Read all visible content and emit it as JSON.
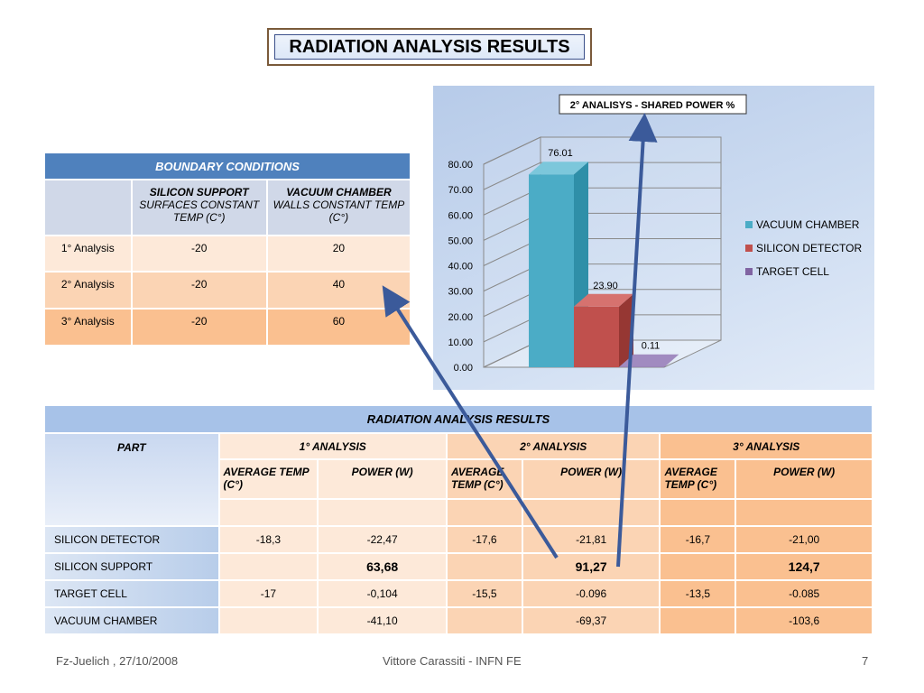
{
  "title": "RADIATION ANALYSIS RESULTS",
  "boundary": {
    "header": "BOUNDARY CONDITIONS",
    "col1_bold": "SILICON SUPPORT",
    "col1_rest": "SURFACES CONSTANT TEMP (C°)",
    "col2_bold": "VACUUM CHAMBER",
    "col2_rest": "WALLS CONSTANT TEMP (C°)",
    "rows": [
      {
        "label": "1°  Analysis",
        "silicon": "-20",
        "vacuum": "20"
      },
      {
        "label": "2°  Analysis",
        "silicon": "-20",
        "vacuum": "40"
      },
      {
        "label": "3°  Analysis",
        "silicon": "-20",
        "vacuum": "60"
      }
    ]
  },
  "chart_data": {
    "type": "bar",
    "title": "2° ANALISYS  -  SHARED POWER %",
    "categories": [
      "VACUUM CHAMBER",
      "SILICON DETECTOR",
      "TARGET CELL"
    ],
    "values": [
      76.01,
      23.9,
      0.11
    ],
    "value_labels": [
      "76.01",
      "23.90",
      "0.11"
    ],
    "colors": [
      "#4bacc6",
      "#c0504d",
      "#8064a2"
    ],
    "ylim": [
      0,
      80
    ],
    "yticks": [
      "0.00",
      "10.00",
      "20.00",
      "30.00",
      "40.00",
      "50.00",
      "60.00",
      "70.00",
      "80.00"
    ],
    "legend": [
      "VACUUM CHAMBER",
      "SILICON DETECTOR",
      "TARGET CELL"
    ],
    "legend_position": "right",
    "grid": true
  },
  "results": {
    "header": "RADIATION ANALYSIS RESULTS",
    "part_label": "PART",
    "analyses": [
      "1° ANALYSIS",
      "2° ANALYSIS",
      "3° ANALYSIS"
    ],
    "avg_label": "AVERAGE TEMP (C°)",
    "power_label": "POWER (W)",
    "rows": [
      {
        "part": "SILICON DETECTOR",
        "v": [
          "-18,3",
          "-22,47",
          "-17,6",
          "-21,81",
          "-16,7",
          "-21,00"
        ]
      },
      {
        "part": "SILICON SUPPORT",
        "v": [
          "",
          "63,68",
          "",
          "91,27",
          "",
          "124,7"
        ]
      },
      {
        "part": "TARGET CELL",
        "v": [
          "-17",
          "-0,104",
          "-15,5",
          "-0.096",
          "-13,5",
          "-0.085"
        ]
      },
      {
        "part": "VACUUM CHAMBER",
        "v": [
          "",
          "-41,10",
          "",
          "-69,37",
          "",
          "-103,6"
        ]
      }
    ]
  },
  "footer": {
    "left": "Fz-Juelich , 27/10/2008",
    "center": "Vittore Carassiti - INFN FE",
    "page": "7"
  }
}
